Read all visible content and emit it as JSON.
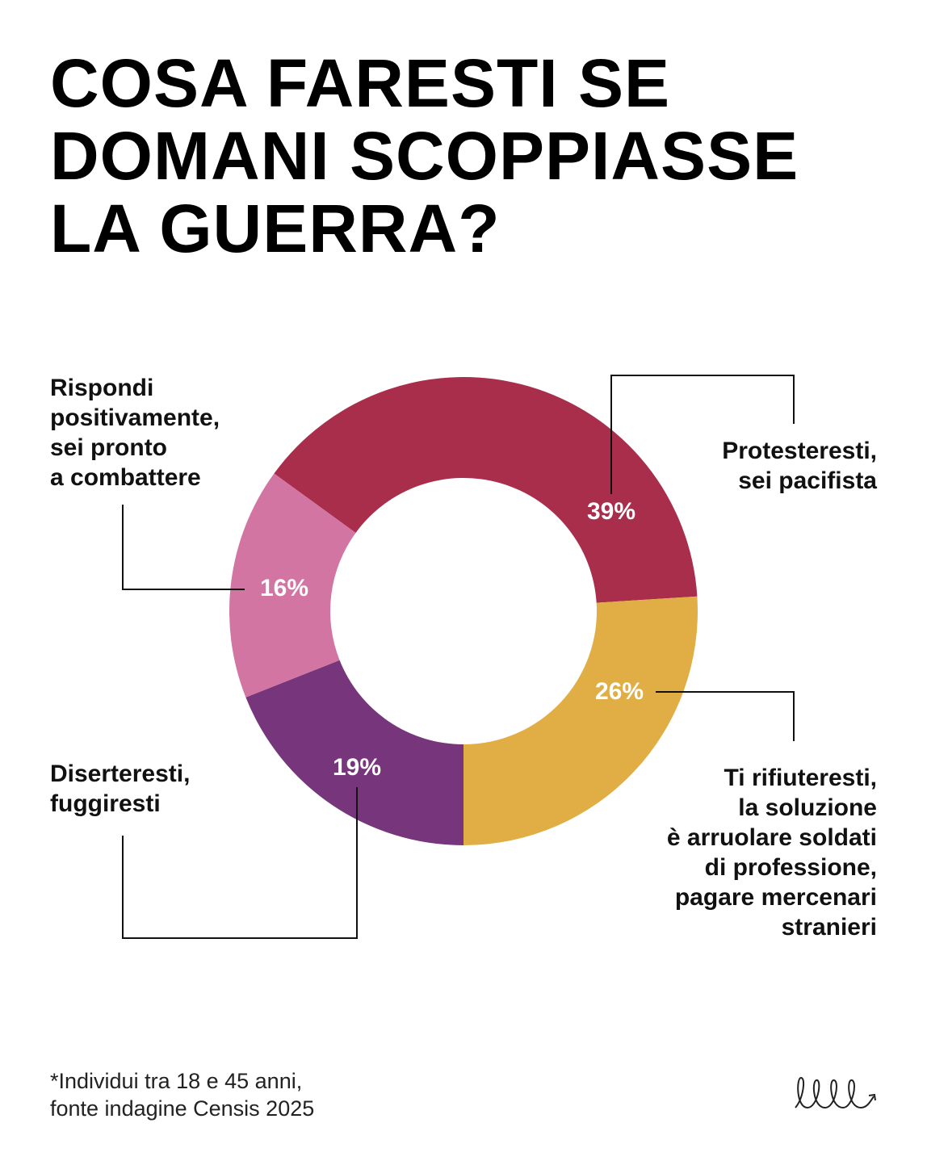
{
  "title": "COSA FARESTI SE\nDOMANI SCOPPIASSE\nLA GUERRA?",
  "chart_data": {
    "type": "pie",
    "categories": [
      "Protesteresti,\nsei pacifista",
      "Ti rifiuteresti,\nla soluzione\nè arruolare soldati\ndi professione,\npagare mercenari\nstranieri",
      "Diserteresti,\nfuggiresti",
      "Rispondi\npositivamente,\nsei pronto\na combattere"
    ],
    "values": [
      39,
      26,
      19,
      16
    ],
    "value_labels": [
      "39%",
      "26%",
      "19%",
      "16%"
    ],
    "colors": [
      "#a82e4c",
      "#e1ae45",
      "#77357c",
      "#d375a3"
    ]
  },
  "footnote": "*Individui tra 18 e 45 anni,\n fonte indagine Censis 2025"
}
